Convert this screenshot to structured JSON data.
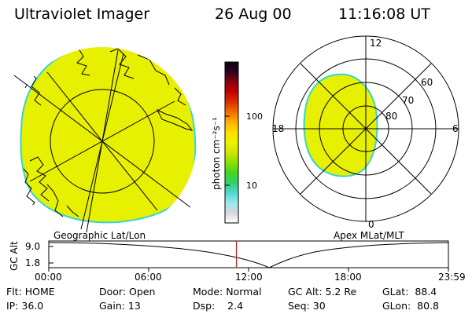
{
  "header": {
    "instrument": "Ultraviolet Imager",
    "date": "26 Aug 00",
    "time": "11:16:08 UT"
  },
  "colors": {
    "aurora_fill": "#e6f000",
    "aurora_edge": "#35d6cf",
    "time_marker": "#b42828"
  },
  "colorbar": {
    "label": "photon cm⁻²s⁻¹",
    "ticks": [
      "100",
      "10"
    ],
    "gradient": [
      "#ffffff",
      "#d8d8d8",
      "#9ae7f0",
      "#4fd8d2",
      "#2cd26a",
      "#49d422",
      "#8ae000",
      "#cfe800",
      "#eef000",
      "#ffe000",
      "#ffb000",
      "#f07000",
      "#e03000",
      "#c40000",
      "#8c0010",
      "#300020",
      "#0a0014"
    ]
  },
  "left_panel": {
    "caption": "Geographic Lat/Lon"
  },
  "right_panel": {
    "caption": "Apex MLat/MLT",
    "mlt_labels": [
      "12",
      "18",
      "6",
      "0"
    ],
    "lat_labels": [
      "60",
      "70",
      "80"
    ]
  },
  "timeline": {
    "axis_title": "GC Alt",
    "y_ticks": [
      "9.0",
      "1.8"
    ],
    "x_ticks": [
      "00:00",
      "06:00",
      "12:00",
      "18:00",
      "23:59"
    ],
    "current_time_hours": 11.27
  },
  "info": {
    "row1": [
      "Flt: HOME",
      "Door: Open",
      "Mode: Normal",
      "GC Alt: 5.2 Re",
      "GLat:  88.4"
    ],
    "row2": [
      "IP: 36.0",
      "Gain: 13",
      "Dsp:    2.4",
      "Seq: 30",
      "GLon:  80.8"
    ]
  }
}
